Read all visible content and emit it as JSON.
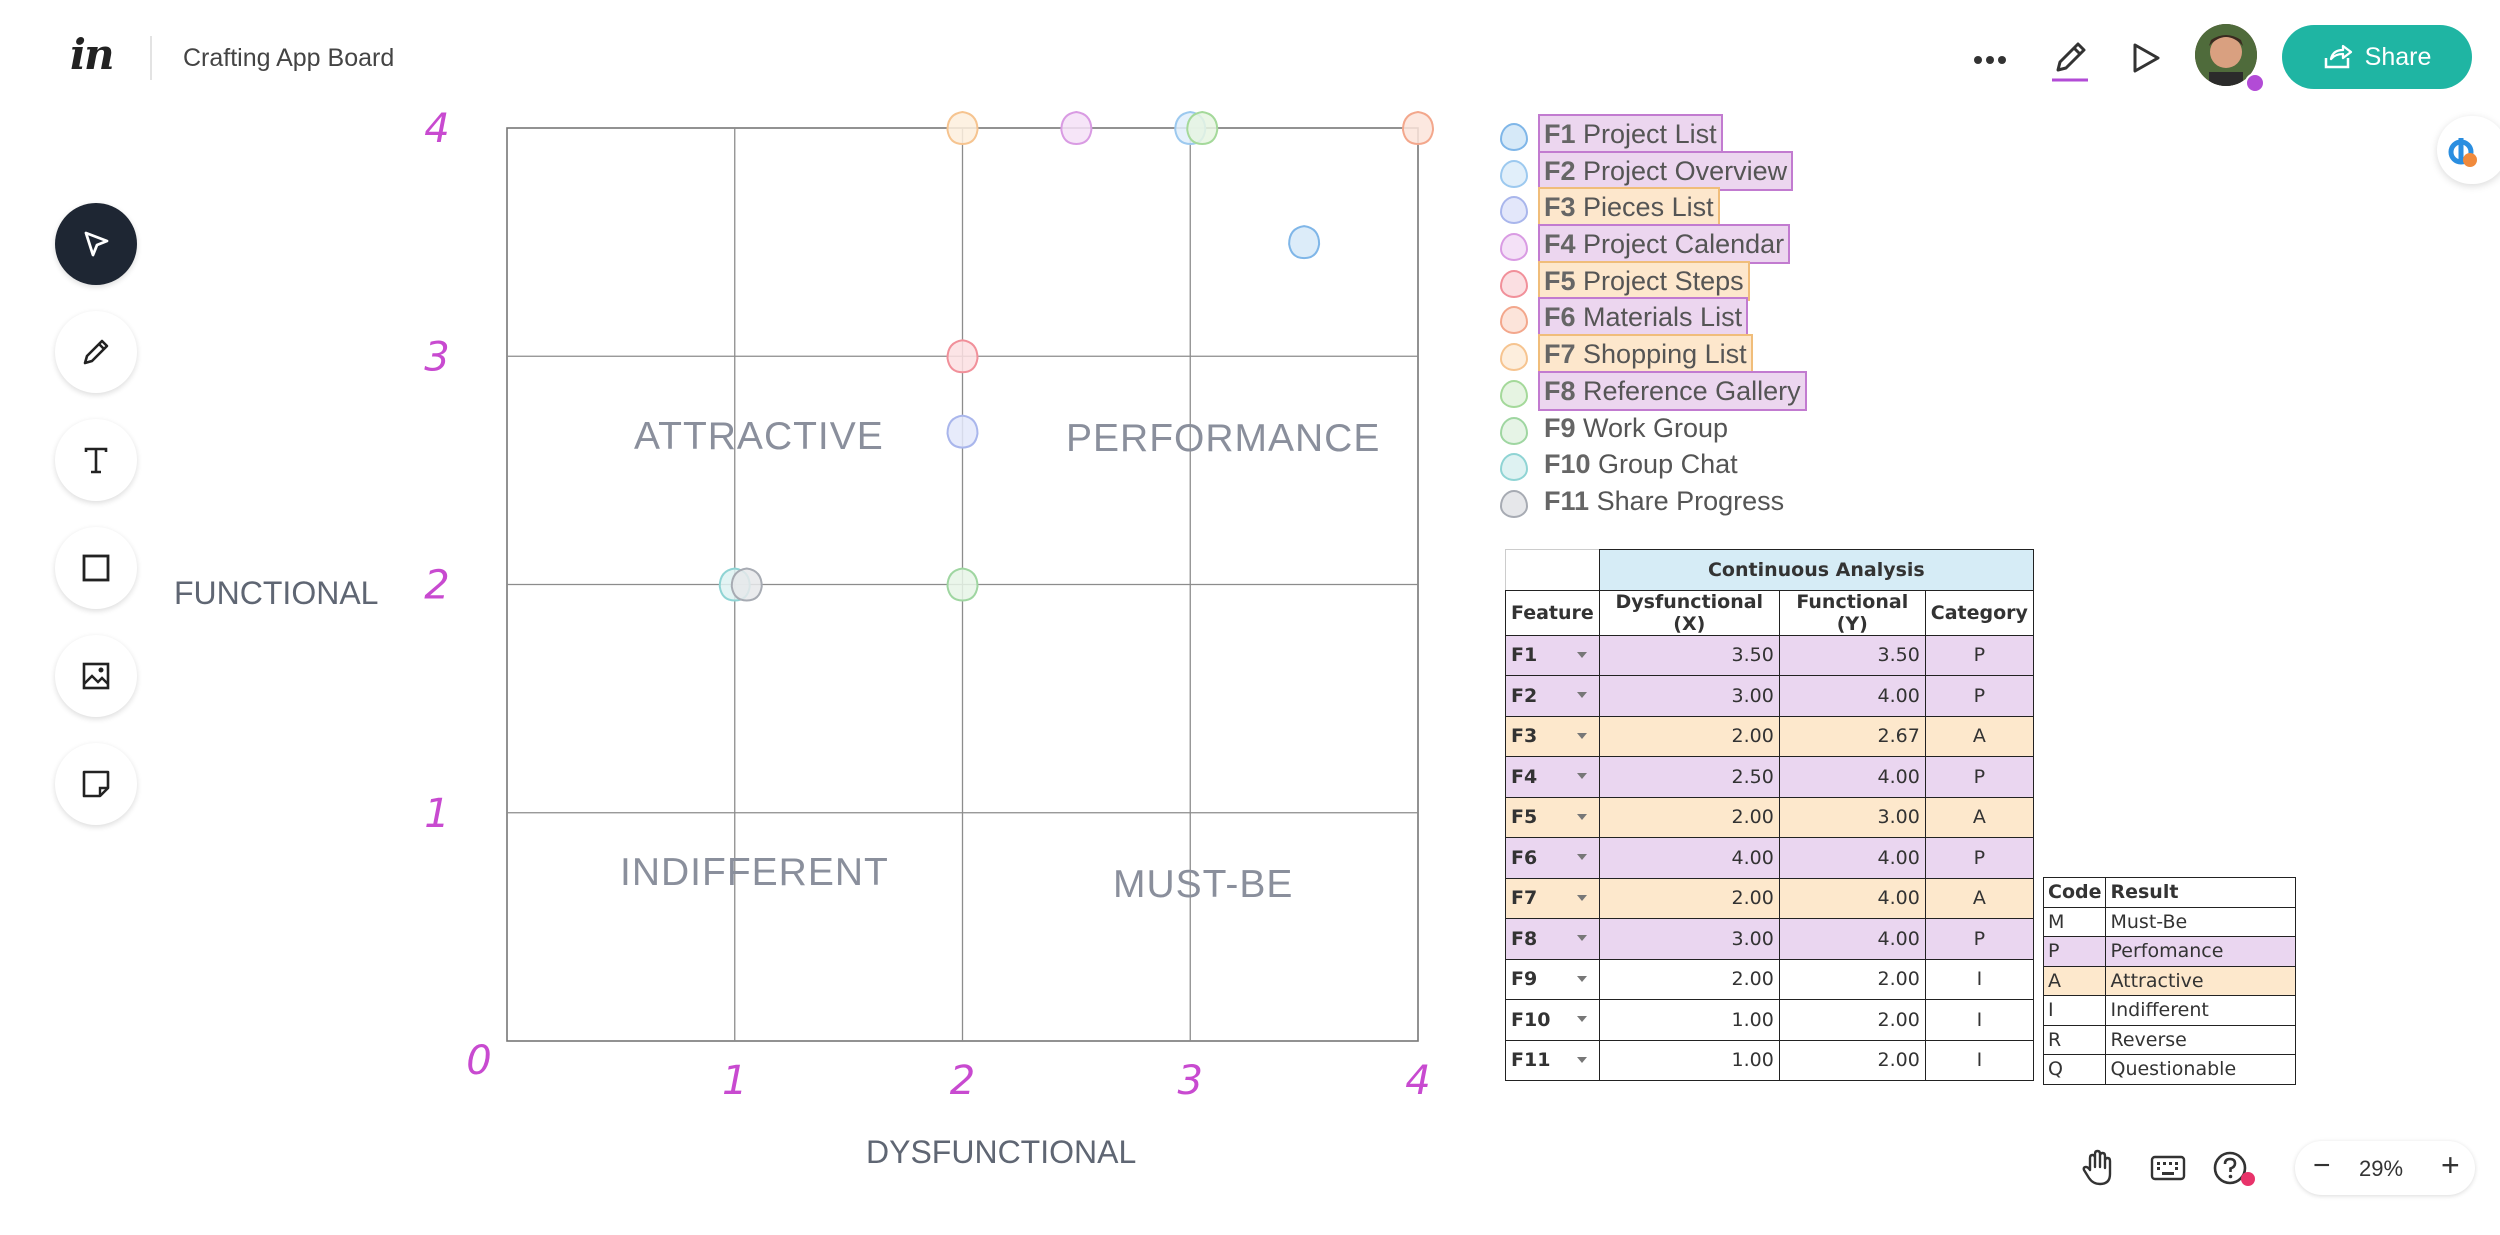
{
  "header": {
    "logo": "in",
    "board_title": "Crafting App Board",
    "share_label": "Share"
  },
  "icons": {
    "more": "more-horizontal-icon",
    "pen": "pen-icon",
    "play": "play-icon",
    "share": "share-icon"
  },
  "toolbar": [
    "select-tool",
    "pen-tool",
    "text-tool",
    "rectangle-tool",
    "image-tool",
    "sticky-note-tool"
  ],
  "chart": {
    "x_axis_title": "DYSFUNCTIONAL",
    "y_axis_title": "FUNCTIONAL",
    "quadrants": {
      "attractive": "ATTRACTIVE",
      "performance": "PERFORMANCE",
      "indifferent": "INDIFFERENT",
      "must_be": "MUST-BE"
    }
  },
  "chart_data": {
    "type": "scatter",
    "xlabel": "DYSFUNCTIONAL",
    "ylabel": "FUNCTIONAL",
    "xlim": [
      0,
      4
    ],
    "ylim": [
      0,
      4
    ],
    "x_ticks": [
      "0",
      "1",
      "2",
      "3",
      "4"
    ],
    "y_ticks": [
      "1",
      "2",
      "3",
      "4"
    ],
    "grid": true,
    "points": [
      {
        "name": "F1",
        "x": 3.5,
        "y": 3.5,
        "color": "#7fb6e8"
      },
      {
        "name": "F2",
        "x": 3.0,
        "y": 4.0,
        "color": "#9cc9ef"
      },
      {
        "name": "F3",
        "x": 2.0,
        "y": 2.67,
        "color": "#a9b6ec"
      },
      {
        "name": "F4",
        "x": 2.5,
        "y": 4.0,
        "color": "#d99be3"
      },
      {
        "name": "F5",
        "x": 2.0,
        "y": 3.0,
        "color": "#f1909a"
      },
      {
        "name": "F6",
        "x": 4.0,
        "y": 4.0,
        "color": "#f3a78c"
      },
      {
        "name": "F7",
        "x": 2.0,
        "y": 4.0,
        "color": "#f6c490"
      },
      {
        "name": "F8",
        "x": 3.0,
        "y": 4.0,
        "color": "#a4d99a"
      },
      {
        "name": "F9",
        "x": 2.0,
        "y": 2.0,
        "color": "#9fd6a1"
      },
      {
        "name": "F10",
        "x": 1.0,
        "y": 2.0,
        "color": "#8fd4d4"
      },
      {
        "name": "F11",
        "x": 1.0,
        "y": 2.0,
        "color": "#a7abb3"
      }
    ]
  },
  "legend": [
    {
      "code": "F1",
      "label": "Project List",
      "color": "#7fb6e8",
      "fill": "#d6e9f8",
      "hl": "p"
    },
    {
      "code": "F2",
      "label": "Project Overview",
      "color": "#9cc9ef",
      "fill": "#e1effa",
      "hl": "p"
    },
    {
      "code": "F3",
      "label": "Pieces List",
      "color": "#a9b6ec",
      "fill": "#e3e7fa",
      "hl": "a"
    },
    {
      "code": "F4",
      "label": "Project Calendar",
      "color": "#d99be3",
      "fill": "#f4e1f7",
      "hl": "p"
    },
    {
      "code": "F5",
      "label": "Project Steps",
      "color": "#f1909a",
      "fill": "#fbdfe2",
      "hl": "a"
    },
    {
      "code": "F6",
      "label": "Materials List",
      "color": "#f3a78c",
      "fill": "#fce4da",
      "hl": "p"
    },
    {
      "code": "F7",
      "label": "Shopping List",
      "color": "#f6c490",
      "fill": "#fdeedd",
      "hl": "a"
    },
    {
      "code": "F8",
      "label": "Reference Gallery",
      "color": "#a4d99a",
      "fill": "#e6f4e2",
      "hl": "p"
    },
    {
      "code": "F9",
      "label": "Work Group",
      "color": "#9fd6a1",
      "fill": "#e6f4e6",
      "hl": ""
    },
    {
      "code": "F10",
      "label": "Group Chat",
      "color": "#8fd4d4",
      "fill": "#def2f2",
      "hl": ""
    },
    {
      "code": "F11",
      "label": "Share Progress",
      "color": "#a7abb3",
      "fill": "#e6e7ea",
      "hl": ""
    }
  ],
  "analysis_table": {
    "caption": "Continuous Analysis",
    "headers": [
      "Feature",
      "Dysfunctional (X)",
      "Functional (Y)",
      "Category"
    ],
    "rows": [
      {
        "feature": "F1",
        "x": "3.50",
        "y": "3.50",
        "category": "P"
      },
      {
        "feature": "F2",
        "x": "3.00",
        "y": "4.00",
        "category": "P"
      },
      {
        "feature": "F3",
        "x": "2.00",
        "y": "2.67",
        "category": "A"
      },
      {
        "feature": "F4",
        "x": "2.50",
        "y": "4.00",
        "category": "P"
      },
      {
        "feature": "F5",
        "x": "2.00",
        "y": "3.00",
        "category": "A"
      },
      {
        "feature": "F6",
        "x": "4.00",
        "y": "4.00",
        "category": "P"
      },
      {
        "feature": "F7",
        "x": "2.00",
        "y": "4.00",
        "category": "A"
      },
      {
        "feature": "F8",
        "x": "3.00",
        "y": "4.00",
        "category": "P"
      },
      {
        "feature": "F9",
        "x": "2.00",
        "y": "2.00",
        "category": "I"
      },
      {
        "feature": "F10",
        "x": "1.00",
        "y": "2.00",
        "category": "I"
      },
      {
        "feature": "F11",
        "x": "1.00",
        "y": "2.00",
        "category": "I"
      }
    ]
  },
  "code_table": {
    "headers": [
      "Code",
      "Result"
    ],
    "rows": [
      {
        "code": "M",
        "result": "Must-Be"
      },
      {
        "code": "P",
        "result": "Perfomance"
      },
      {
        "code": "A",
        "result": "Attractive"
      },
      {
        "code": "I",
        "result": "Indifferent"
      },
      {
        "code": "R",
        "result": "Reverse"
      },
      {
        "code": "Q",
        "result": "Questionable"
      }
    ]
  },
  "bottom_bar": {
    "zoom": "29%",
    "zoom_out": "−",
    "zoom_in": "+"
  }
}
